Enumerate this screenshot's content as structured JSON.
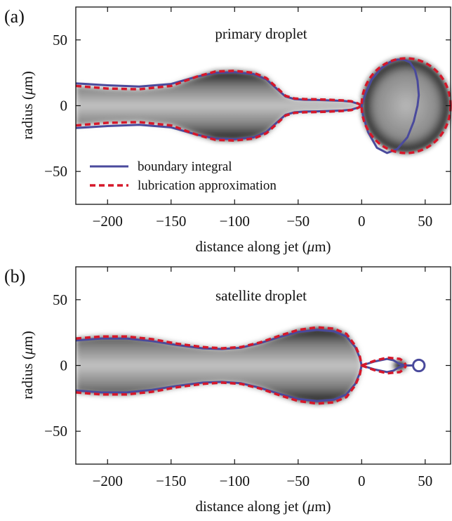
{
  "chart_data": [
    {
      "type": "line",
      "panel_label": "(a)",
      "title": "primary droplet",
      "xlabel_parts": [
        "distance along jet (",
        "μ",
        "m)"
      ],
      "ylabel_parts": [
        "radius (",
        "μ",
        "m)"
      ],
      "xlim": [
        -225,
        70
      ],
      "ylim": [
        -75,
        75
      ],
      "xticks": [
        -200,
        -150,
        -100,
        -50,
        0,
        50
      ],
      "yticks": [
        -50,
        0,
        50
      ],
      "xtick_labels": [
        "−200",
        "−150",
        "−100",
        "−50",
        "0",
        "50"
      ],
      "ytick_labels": [
        "−50",
        "0",
        "50"
      ],
      "grid": false,
      "legend_position": "lower-left",
      "colors": {
        "boundary": "#4a4a9c",
        "lubrication": "#d6182a"
      },
      "series": [
        {
          "name": "boundary integral",
          "style": "solid",
          "x": [
            -225,
            -200,
            -175,
            -150,
            -130,
            -115,
            -100,
            -85,
            -75,
            -67,
            -60,
            -53,
            -45,
            -35,
            -25,
            -15,
            -8,
            -3,
            0
          ],
          "y": [
            17,
            15.5,
            14.5,
            16.5,
            22,
            25,
            25.5,
            24,
            20,
            13,
            7,
            5,
            4.5,
            4.3,
            4,
            3.7,
            3,
            1.5,
            0
          ],
          "drop_x": [
            0,
            3,
            8,
            15,
            22,
            28,
            33,
            38,
            42,
            44,
            45,
            44,
            41,
            36,
            28,
            20,
            12,
            5,
            1,
            0
          ],
          "drop_y": [
            0,
            9,
            20,
            28,
            33,
            35,
            35,
            33,
            27,
            19,
            8,
            0,
            -12,
            -24,
            -33,
            -36,
            -32,
            -20,
            -7,
            0
          ]
        },
        {
          "name": "lubrication approximation",
          "style": "dashed",
          "x": [
            -225,
            -200,
            -175,
            -150,
            -130,
            -115,
            -100,
            -85,
            -75,
            -67,
            -60,
            -53,
            -45,
            -35,
            -25,
            -15,
            -8,
            -3,
            0
          ],
          "y": [
            15,
            13,
            12.5,
            15,
            22,
            26,
            26.5,
            25,
            21,
            14,
            7.5,
            5.5,
            5,
            4.8,
            4.5,
            4,
            3.3,
            1.7,
            0
          ],
          "drop_center": 35,
          "drop_rx": 35,
          "drop_ry": 36
        }
      ]
    },
    {
      "type": "line",
      "panel_label": "(b)",
      "title": "satellite droplet",
      "xlabel_parts": [
        "distance along jet (",
        "μ",
        "m)"
      ],
      "ylabel_parts": [
        "radius (",
        "μ",
        "m)"
      ],
      "xlim": [
        -225,
        70
      ],
      "ylim": [
        -75,
        75
      ],
      "xticks": [
        -200,
        -150,
        -100,
        -50,
        0,
        50
      ],
      "yticks": [
        -50,
        0,
        50
      ],
      "xtick_labels": [
        "−200",
        "−150",
        "−100",
        "−50",
        "0",
        "50"
      ],
      "ytick_labels": [
        "−50",
        "0",
        "50"
      ],
      "grid": false,
      "colors": {
        "boundary": "#4a4a9c",
        "lubrication": "#d6182a"
      },
      "series": [
        {
          "name": "boundary integral",
          "style": "solid",
          "x": [
            -225,
            -205,
            -185,
            -165,
            -145,
            -125,
            -110,
            -95,
            -80,
            -65,
            -50,
            -35,
            -22,
            -12,
            -5,
            -1.5,
            0
          ],
          "y": [
            19,
            20.5,
            20.5,
            18.5,
            15.5,
            13,
            12.5,
            13.5,
            17,
            21.5,
            25.5,
            27,
            26,
            22,
            14,
            6,
            0
          ],
          "satellite_x": [
            0,
            10,
            20,
            25,
            30,
            35,
            40
          ],
          "satellite_y": [
            0,
            3,
            5,
            4,
            1,
            0,
            0
          ],
          "small_drop_center": 45,
          "small_drop_r": 4.5
        },
        {
          "name": "lubrication approximation",
          "style": "dashed",
          "x": [
            -225,
            -205,
            -185,
            -165,
            -145,
            -125,
            -110,
            -95,
            -80,
            -65,
            -50,
            -35,
            -22,
            -12,
            -5,
            -1.5,
            0
          ],
          "y": [
            20.5,
            22,
            22,
            20,
            16.5,
            14,
            13,
            14,
            17.5,
            22.5,
            27,
            29,
            28,
            24,
            15,
            7,
            0
          ],
          "satellite_x": [
            0,
            10,
            20,
            25,
            30,
            33,
            35
          ],
          "satellite_y": [
            0,
            3.5,
            6,
            5.5,
            5,
            3,
            0
          ]
        }
      ]
    }
  ],
  "legend": {
    "boundary_label": "boundary integral",
    "lubrication_label": "lubrication approximation"
  }
}
